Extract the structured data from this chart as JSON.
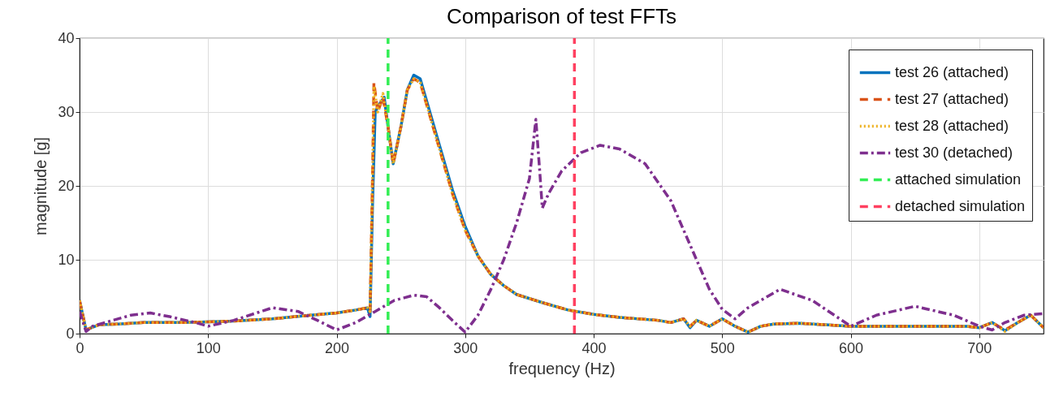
{
  "chart_data": {
    "type": "line",
    "title": "Comparison of test FFTs",
    "xlabel": "frequency (Hz)",
    "ylabel": "magnitude [g]",
    "xlim": [
      0,
      750
    ],
    "ylim": [
      0,
      40
    ],
    "xticks": [
      0,
      100,
      200,
      300,
      400,
      500,
      600,
      700
    ],
    "yticks": [
      0,
      10,
      20,
      30,
      40
    ],
    "grid": true,
    "legend": "top right",
    "marker": "none",
    "series": [
      {
        "name": "test 26 (attached)",
        "color": "#0072bd",
        "line_style": "solid",
        "x": [
          0,
          5,
          15,
          30,
          50,
          80,
          100,
          120,
          150,
          180,
          200,
          215,
          224,
          226,
          228,
          230,
          233,
          237,
          240,
          244,
          250,
          255,
          260,
          265,
          270,
          280,
          290,
          300,
          310,
          320,
          330,
          340,
          360,
          380,
          400,
          420,
          450,
          460,
          470,
          475,
          480,
          490,
          500,
          510,
          520,
          530,
          540,
          560,
          600,
          650,
          690,
          700,
          710,
          720,
          730,
          740,
          750
        ],
        "values": [
          4.5,
          0.5,
          1.2,
          1.3,
          1.5,
          1.5,
          1.6,
          1.7,
          2.0,
          2.5,
          2.8,
          3.2,
          3.5,
          2.3,
          18,
          30,
          31,
          32,
          28,
          23,
          28,
          33,
          35,
          34.5,
          31.5,
          25.5,
          19.5,
          14.5,
          10.5,
          8,
          6.5,
          5.3,
          4.2,
          3.2,
          2.6,
          2.2,
          1.8,
          1.5,
          2.0,
          0.8,
          1.8,
          1.0,
          2.0,
          1.0,
          0.2,
          1.0,
          1.3,
          1.4,
          1.0,
          1.0,
          1.0,
          0.8,
          1.5,
          0.4,
          1.5,
          2.5,
          0.8
        ]
      },
      {
        "name": "test 27 (attached)",
        "color": "#d95319",
        "line_style": "dashed",
        "x": [
          0,
          5,
          15,
          30,
          50,
          80,
          100,
          120,
          150,
          180,
          200,
          215,
          224,
          226,
          228,
          229,
          232,
          236,
          240,
          244,
          250,
          255,
          260,
          265,
          270,
          280,
          290,
          300,
          310,
          320,
          330,
          340,
          360,
          380,
          400,
          420,
          450,
          460,
          470,
          475,
          480,
          490,
          500,
          510,
          520,
          530,
          540,
          560,
          600,
          650,
          690,
          700,
          710,
          720,
          730,
          740,
          750
        ],
        "values": [
          4.5,
          0.5,
          1.2,
          1.3,
          1.5,
          1.5,
          1.6,
          1.7,
          2.0,
          2.5,
          2.8,
          3.2,
          3.5,
          3.0,
          22,
          34,
          30,
          32,
          28,
          23,
          28,
          33,
          34.5,
          34,
          31,
          25,
          19,
          14,
          10.5,
          8,
          6.5,
          5.3,
          4.2,
          3.2,
          2.6,
          2.2,
          1.8,
          1.5,
          2.0,
          1.0,
          1.8,
          1.0,
          2.0,
          1.0,
          0.2,
          1.0,
          1.3,
          1.4,
          1.0,
          1.0,
          1.0,
          0.8,
          1.5,
          0.5,
          1.5,
          2.5,
          0.8
        ]
      },
      {
        "name": " test 28 (attached)",
        "color": "#edb120",
        "line_style": "dotted",
        "x": [
          0,
          5,
          15,
          30,
          50,
          80,
          100,
          120,
          150,
          180,
          200,
          215,
          224,
          226,
          228,
          229,
          232,
          236,
          240,
          244,
          250,
          255,
          260,
          265,
          270,
          280,
          290,
          300,
          310,
          320,
          330,
          340,
          360,
          380,
          400,
          420,
          450,
          460,
          470,
          475,
          480,
          490,
          500,
          510,
          520,
          530,
          540,
          560,
          600,
          650,
          690,
          700,
          710,
          720,
          730,
          740,
          750
        ],
        "values": [
          4.5,
          0.5,
          1.2,
          1.3,
          1.5,
          1.5,
          1.6,
          1.7,
          2.0,
          2.5,
          2.8,
          3.2,
          3.5,
          3.0,
          22,
          33.5,
          30,
          32.5,
          28,
          23,
          28,
          33,
          34.5,
          34,
          31,
          25,
          19,
          14,
          10.5,
          8,
          6.5,
          5.3,
          4.2,
          3.2,
          2.6,
          2.2,
          1.8,
          1.5,
          2.0,
          1.0,
          1.8,
          1.0,
          2.0,
          1.0,
          0.2,
          1.0,
          1.3,
          1.4,
          1.0,
          1.0,
          1.0,
          0.8,
          1.5,
          0.3,
          1.5,
          2.5,
          0.8
        ]
      },
      {
        "name": "test 30 (detached)",
        "color": "#7e2f8e",
        "line_style": "dashdot",
        "x": [
          0,
          5,
          10,
          20,
          40,
          55,
          70,
          90,
          100,
          120,
          150,
          170,
          185,
          200,
          215,
          230,
          245,
          260,
          270,
          280,
          290,
          300,
          310,
          320,
          330,
          340,
          350,
          355,
          358,
          360,
          365,
          375,
          390,
          405,
          420,
          440,
          460,
          475,
          490,
          500,
          510,
          520,
          545,
          570,
          600,
          620,
          650,
          680,
          700,
          710,
          720,
          735,
          750
        ],
        "values": [
          3,
          0.3,
          1,
          1.5,
          2.5,
          2.8,
          2.3,
          1.5,
          1.0,
          1.8,
          3.5,
          3.0,
          1.8,
          0.5,
          1.5,
          3.0,
          4.5,
          5.2,
          5.0,
          3.5,
          1.8,
          0.2,
          2.5,
          6,
          10,
          15,
          21,
          29,
          22,
          17,
          19,
          22,
          24.5,
          25.5,
          25,
          23,
          18,
          12,
          6,
          3.3,
          2,
          3.5,
          6,
          4.5,
          1.0,
          2.5,
          3.7,
          2.5,
          1.0,
          0.5,
          1.5,
          2.5,
          2.7
        ]
      },
      {
        "name": "attached simulation",
        "color": "#33ee55",
        "line_style": "dashed",
        "x": [
          240,
          240
        ],
        "values": [
          0,
          40
        ]
      },
      {
        "name": "detached simulation",
        "color": "#ff4060",
        "line_style": "dashed",
        "x": [
          385,
          385
        ],
        "values": [
          0,
          40
        ]
      }
    ]
  }
}
